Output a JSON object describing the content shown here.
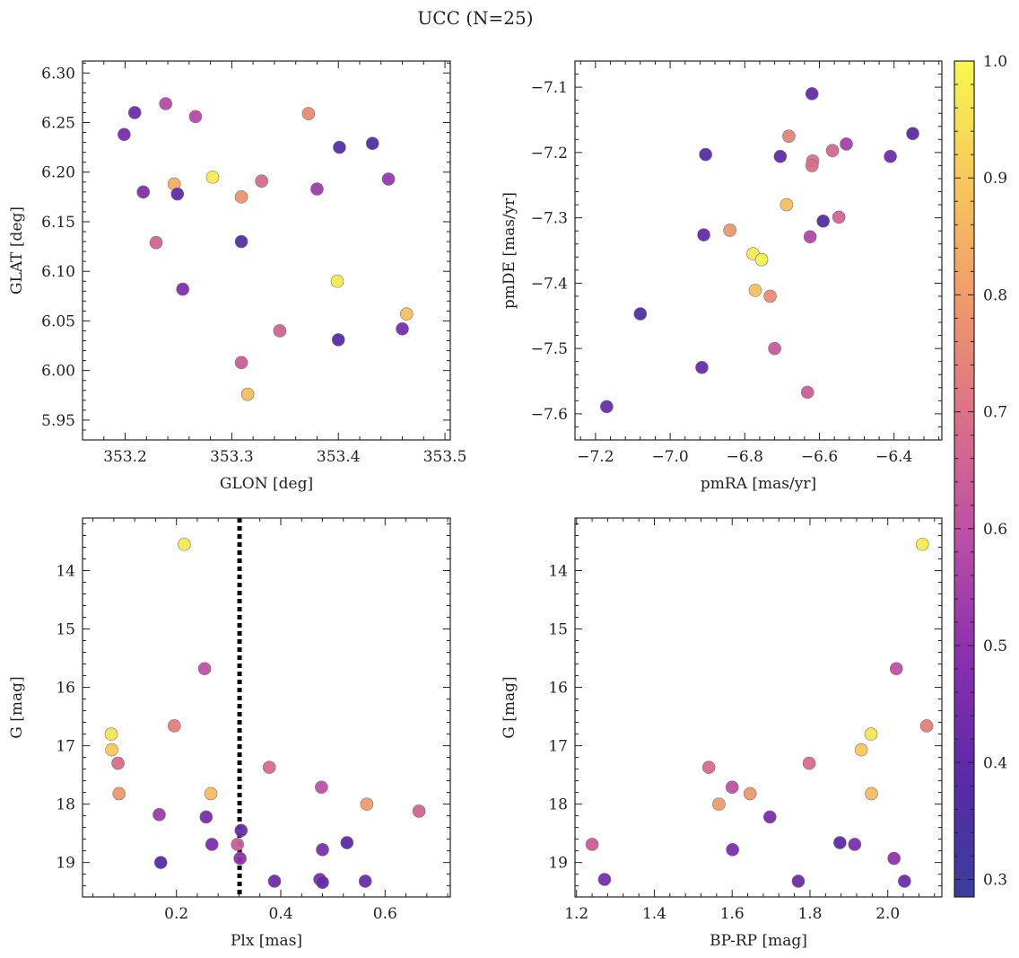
{
  "figure": {
    "title": "UCC (N=25)"
  },
  "colorbar": {
    "range": [
      0.285,
      1.0
    ],
    "ticks": [
      0.3,
      0.4,
      0.5,
      0.6,
      0.7,
      0.8,
      0.9,
      1.0
    ],
    "tick_labels": [
      "0.3",
      "0.4",
      "0.5",
      "0.6",
      "0.7",
      "0.8",
      "0.9",
      "1.0"
    ],
    "colormap": "plasma",
    "stops": [
      "#393e9c",
      "#5a2aa8",
      "#8a2fb0",
      "#bb4ea6",
      "#dc6f88",
      "#f09a6a",
      "#f8c75a",
      "#f5f94e"
    ]
  },
  "chart_data": [
    {
      "type": "scatter",
      "xlabel": "GLON [deg]",
      "ylabel": "GLAT [deg]",
      "xlim": [
        353.16,
        353.505
      ],
      "ylim": [
        5.93,
        6.312
      ],
      "xticks": [
        353.2,
        353.3,
        353.4,
        353.5
      ],
      "xtick_labels": [
        "353.2",
        "353.3",
        "353.4",
        "353.5"
      ],
      "yticks": [
        5.95,
        6.0,
        6.05,
        6.1,
        6.15,
        6.2,
        6.25,
        6.3
      ],
      "ytick_labels": [
        "5.95",
        "6.00",
        "6.05",
        "6.10",
        "6.15",
        "6.20",
        "6.25",
        "6.30"
      ],
      "points": [
        {
          "x": 353.199,
          "y": 6.238,
          "c": 0.45
        },
        {
          "x": 353.209,
          "y": 6.26,
          "c": 0.43
        },
        {
          "x": 353.217,
          "y": 6.18,
          "c": 0.47
        },
        {
          "x": 353.238,
          "y": 6.269,
          "c": 0.58
        },
        {
          "x": 353.266,
          "y": 6.256,
          "c": 0.58
        },
        {
          "x": 353.229,
          "y": 6.129,
          "c": 0.66
        },
        {
          "x": 353.246,
          "y": 6.188,
          "c": 0.84
        },
        {
          "x": 353.249,
          "y": 6.178,
          "c": 0.4
        },
        {
          "x": 353.282,
          "y": 6.195,
          "c": 0.97
        },
        {
          "x": 353.254,
          "y": 6.082,
          "c": 0.47
        },
        {
          "x": 353.309,
          "y": 6.175,
          "c": 0.78
        },
        {
          "x": 353.328,
          "y": 6.191,
          "c": 0.68
        },
        {
          "x": 353.309,
          "y": 6.13,
          "c": 0.36
        },
        {
          "x": 353.372,
          "y": 6.259,
          "c": 0.76
        },
        {
          "x": 353.38,
          "y": 6.183,
          "c": 0.53
        },
        {
          "x": 353.401,
          "y": 6.225,
          "c": 0.36
        },
        {
          "x": 353.432,
          "y": 6.229,
          "c": 0.37
        },
        {
          "x": 353.447,
          "y": 6.193,
          "c": 0.52
        },
        {
          "x": 353.399,
          "y": 6.09,
          "c": 0.97
        },
        {
          "x": 353.345,
          "y": 6.04,
          "c": 0.66
        },
        {
          "x": 353.4,
          "y": 6.031,
          "c": 0.38
        },
        {
          "x": 353.46,
          "y": 6.042,
          "c": 0.45
        },
        {
          "x": 353.464,
          "y": 6.057,
          "c": 0.88
        },
        {
          "x": 353.309,
          "y": 6.008,
          "c": 0.64
        },
        {
          "x": 353.315,
          "y": 5.976,
          "c": 0.88
        }
      ]
    },
    {
      "type": "scatter",
      "xlabel": "pmRA [mas/yr]",
      "ylabel": "pmDE [mas/yr]",
      "xlim": [
        -7.255,
        -6.272
      ],
      "ylim": [
        -7.64,
        -7.06
      ],
      "xticks": [
        -7.2,
        -7.0,
        -6.8,
        -6.6,
        -6.4
      ],
      "xtick_labels": [
        "−7.2",
        "−7.0",
        "−6.8",
        "−6.6",
        "−6.4"
      ],
      "yticks": [
        -7.6,
        -7.5,
        -7.4,
        -7.3,
        -7.2,
        -7.1
      ],
      "ytick_labels": [
        "−7.6",
        "−7.5",
        "−7.4",
        "−7.3",
        "−7.2",
        "−7.1"
      ],
      "points": [
        {
          "x": -7.17,
          "y": -7.589,
          "c": 0.42
        },
        {
          "x": -7.08,
          "y": -7.447,
          "c": 0.36
        },
        {
          "x": -6.905,
          "y": -7.203,
          "c": 0.38
        },
        {
          "x": -6.91,
          "y": -7.326,
          "c": 0.41
        },
        {
          "x": -6.915,
          "y": -7.529,
          "c": 0.42
        },
        {
          "x": -6.84,
          "y": -7.319,
          "c": 0.79
        },
        {
          "x": -6.778,
          "y": -7.355,
          "c": 0.97
        },
        {
          "x": -6.755,
          "y": -7.364,
          "c": 0.98
        },
        {
          "x": -6.772,
          "y": -7.411,
          "c": 0.88
        },
        {
          "x": -6.732,
          "y": -7.42,
          "c": 0.76
        },
        {
          "x": -6.72,
          "y": -7.5,
          "c": 0.63
        },
        {
          "x": -6.705,
          "y": -7.206,
          "c": 0.4
        },
        {
          "x": -6.682,
          "y": -7.175,
          "c": 0.74
        },
        {
          "x": -6.688,
          "y": -7.28,
          "c": 0.88
        },
        {
          "x": -6.62,
          "y": -7.11,
          "c": 0.41
        },
        {
          "x": -6.618,
          "y": -7.213,
          "c": 0.7
        },
        {
          "x": -6.62,
          "y": -7.22,
          "c": 0.69
        },
        {
          "x": -6.625,
          "y": -7.329,
          "c": 0.57
        },
        {
          "x": -6.59,
          "y": -7.305,
          "c": 0.37
        },
        {
          "x": -6.565,
          "y": -7.197,
          "c": 0.67
        },
        {
          "x": -6.548,
          "y": -7.299,
          "c": 0.66
        },
        {
          "x": -6.528,
          "y": -7.187,
          "c": 0.55
        },
        {
          "x": -6.632,
          "y": -7.567,
          "c": 0.64
        },
        {
          "x": -6.41,
          "y": -7.206,
          "c": 0.44
        },
        {
          "x": -6.35,
          "y": -7.171,
          "c": 0.39
        }
      ]
    },
    {
      "type": "scatter",
      "xlabel": "Plx [mas]",
      "ylabel": "G [mag]",
      "xlim": [
        0.02,
        0.725
      ],
      "ylim": [
        19.59,
        13.1
      ],
      "invert_y": true,
      "xticks": [
        0.2,
        0.4,
        0.6
      ],
      "xtick_labels": [
        "0.2",
        "0.4",
        "0.6"
      ],
      "yticks": [
        14,
        15,
        16,
        17,
        18,
        19
      ],
      "ytick_labels": [
        "14",
        "15",
        "16",
        "17",
        "18",
        "19"
      ],
      "vline": 0.321,
      "points": [
        {
          "x": 0.215,
          "y": 13.55,
          "c": 0.97
        },
        {
          "x": 0.254,
          "y": 15.68,
          "c": 0.6
        },
        {
          "x": 0.196,
          "y": 16.66,
          "c": 0.73
        },
        {
          "x": 0.075,
          "y": 16.8,
          "c": 0.96
        },
        {
          "x": 0.076,
          "y": 17.07,
          "c": 0.9
        },
        {
          "x": 0.088,
          "y": 17.3,
          "c": 0.68
        },
        {
          "x": 0.09,
          "y": 17.82,
          "c": 0.79
        },
        {
          "x": 0.266,
          "y": 17.82,
          "c": 0.87
        },
        {
          "x": 0.378,
          "y": 17.37,
          "c": 0.68
        },
        {
          "x": 0.478,
          "y": 17.71,
          "c": 0.6
        },
        {
          "x": 0.565,
          "y": 18.0,
          "c": 0.8
        },
        {
          "x": 0.665,
          "y": 18.12,
          "c": 0.66
        },
        {
          "x": 0.167,
          "y": 18.18,
          "c": 0.53
        },
        {
          "x": 0.257,
          "y": 18.22,
          "c": 0.45
        },
        {
          "x": 0.324,
          "y": 18.45,
          "c": 0.42
        },
        {
          "x": 0.268,
          "y": 18.69,
          "c": 0.46
        },
        {
          "x": 0.317,
          "y": 18.69,
          "c": 0.64
        },
        {
          "x": 0.322,
          "y": 18.93,
          "c": 0.5
        },
        {
          "x": 0.48,
          "y": 18.78,
          "c": 0.46
        },
        {
          "x": 0.527,
          "y": 18.66,
          "c": 0.39
        },
        {
          "x": 0.17,
          "y": 19.0,
          "c": 0.36
        },
        {
          "x": 0.388,
          "y": 19.32,
          "c": 0.43
        },
        {
          "x": 0.475,
          "y": 19.29,
          "c": 0.45
        },
        {
          "x": 0.48,
          "y": 19.34,
          "c": 0.41
        },
        {
          "x": 0.562,
          "y": 19.32,
          "c": 0.42
        }
      ]
    },
    {
      "type": "scatter",
      "xlabel": "BP-RP [mag]",
      "ylabel": "G [mag]",
      "xlim": [
        1.196,
        2.139
      ],
      "ylim": [
        19.59,
        13.1
      ],
      "invert_y": true,
      "xticks": [
        1.2,
        1.4,
        1.6,
        1.8,
        2.0
      ],
      "xtick_labels": [
        "1.2",
        "1.4",
        "1.6",
        "1.8",
        "2.0"
      ],
      "yticks": [
        14,
        15,
        16,
        17,
        18,
        19
      ],
      "ytick_labels": [
        "14",
        "15",
        "16",
        "17",
        "18",
        "19"
      ],
      "points": [
        {
          "x": 2.089,
          "y": 13.55,
          "c": 0.97
        },
        {
          "x": 2.022,
          "y": 15.68,
          "c": 0.6
        },
        {
          "x": 2.1,
          "y": 16.66,
          "c": 0.73
        },
        {
          "x": 1.957,
          "y": 16.8,
          "c": 0.96
        },
        {
          "x": 1.932,
          "y": 17.07,
          "c": 0.9
        },
        {
          "x": 1.798,
          "y": 17.3,
          "c": 0.68
        },
        {
          "x": 1.958,
          "y": 17.82,
          "c": 0.87
        },
        {
          "x": 1.646,
          "y": 17.82,
          "c": 0.79
        },
        {
          "x": 1.54,
          "y": 17.37,
          "c": 0.68
        },
        {
          "x": 1.6,
          "y": 17.71,
          "c": 0.6
        },
        {
          "x": 1.566,
          "y": 18.0,
          "c": 0.8
        },
        {
          "x": 1.697,
          "y": 18.22,
          "c": 0.45
        },
        {
          "x": 1.24,
          "y": 18.69,
          "c": 0.64
        },
        {
          "x": 1.601,
          "y": 18.78,
          "c": 0.46
        },
        {
          "x": 1.877,
          "y": 18.66,
          "c": 0.39
        },
        {
          "x": 1.915,
          "y": 18.69,
          "c": 0.46
        },
        {
          "x": 2.016,
          "y": 18.93,
          "c": 0.5
        },
        {
          "x": 1.272,
          "y": 19.29,
          "c": 0.45
        },
        {
          "x": 1.77,
          "y": 19.32,
          "c": 0.43
        },
        {
          "x": 2.043,
          "y": 19.32,
          "c": 0.42
        }
      ]
    }
  ]
}
